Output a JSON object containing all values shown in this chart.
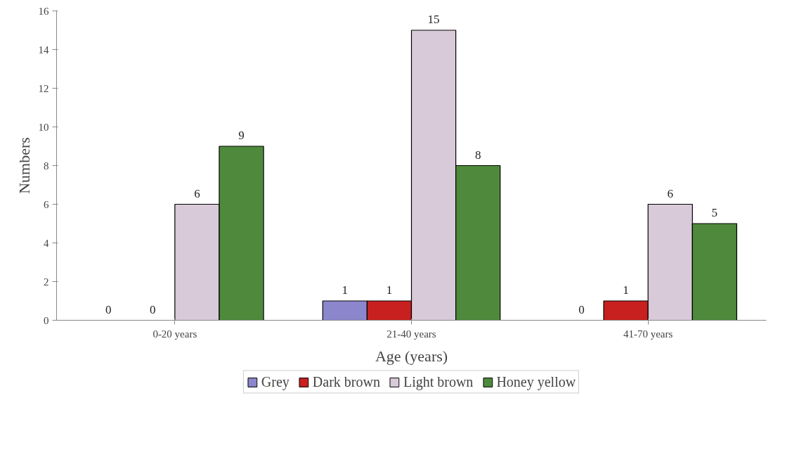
{
  "chart_data": {
    "type": "bar",
    "categories": [
      "0-20 years",
      "21-40 years",
      "41-70 years"
    ],
    "series": [
      {
        "name": "Grey",
        "color": "#8c86cc",
        "values": [
          0,
          1,
          0
        ]
      },
      {
        "name": "Dark brown",
        "color": "#c8201e",
        "values": [
          0,
          1,
          1
        ]
      },
      {
        "name": "Light brown",
        "color": "#d8cad8",
        "values": [
          6,
          15,
          6
        ]
      },
      {
        "name": "Honey yellow",
        "color": "#4f8a3c",
        "values": [
          9,
          8,
          5
        ]
      }
    ],
    "xlabel": "Age (years)",
    "ylabel": "Numbers",
    "ylim": [
      0,
      16
    ],
    "yticks": [
      0,
      2,
      4,
      6,
      8,
      10,
      12,
      14,
      16
    ],
    "data_labels": true,
    "grid": false,
    "legend": "bottom"
  }
}
